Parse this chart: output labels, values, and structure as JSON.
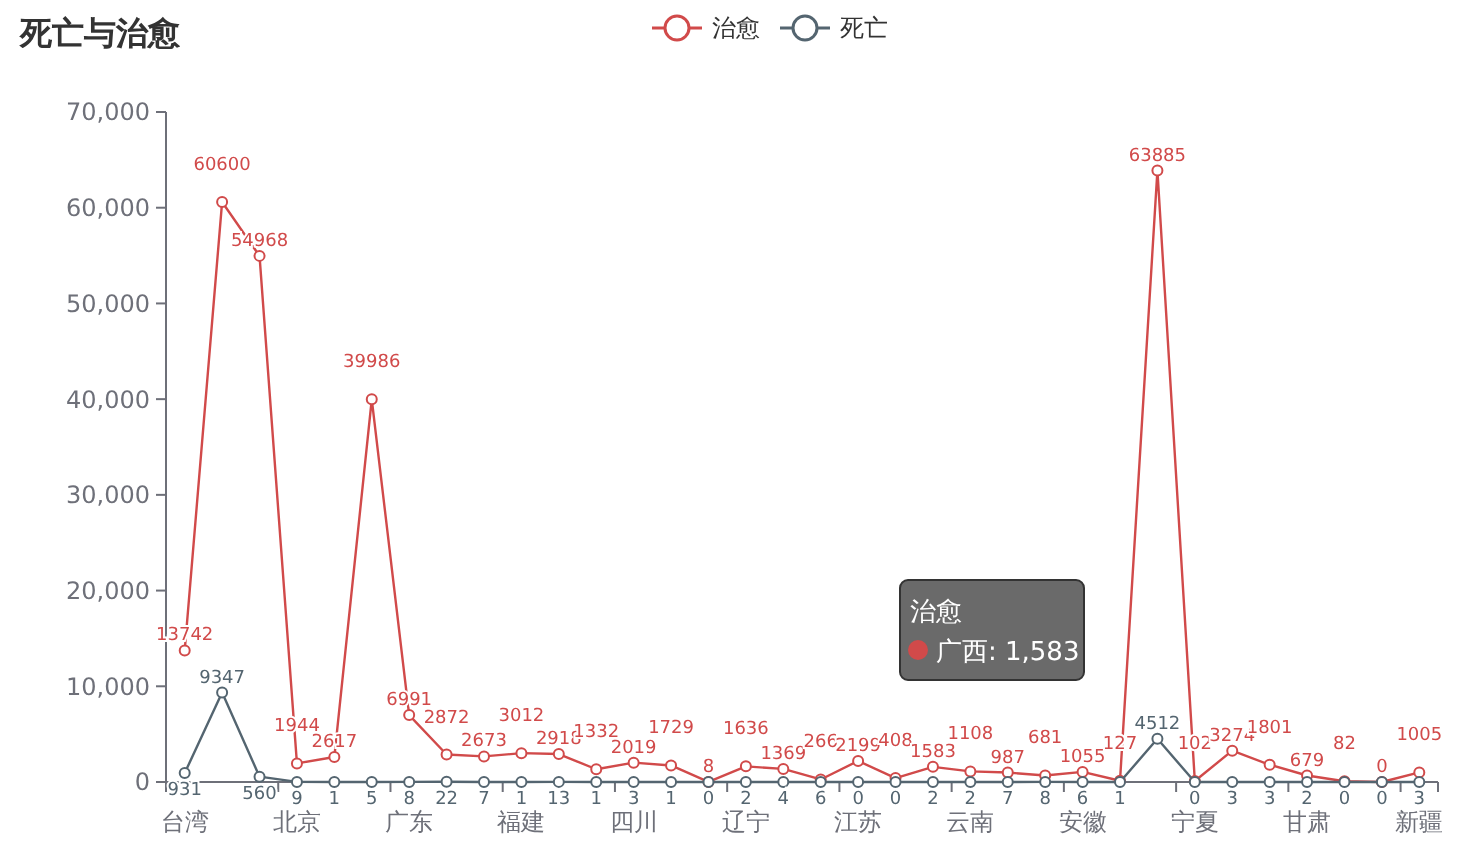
{
  "chart_data": {
    "type": "line",
    "title": "死亡与治愈",
    "categories": [
      "台湾",
      null,
      null,
      "北京",
      null,
      null,
      "广东",
      null,
      null,
      "福建",
      null,
      null,
      "四川",
      null,
      null,
      "辽宁",
      null,
      null,
      "江苏",
      null,
      null,
      "云南",
      null,
      null,
      "安徽",
      null,
      null,
      "宁夏",
      null,
      null,
      "甘肃",
      null,
      null,
      "新疆"
    ],
    "series": [
      {
        "name": "治愈",
        "color": "#d14a4a",
        "values": [
          13742,
          60600,
          54968,
          1944,
          2617,
          39986,
          6991,
          2872,
          2673,
          3012,
          2918,
          1332,
          2019,
          1729,
          8,
          1636,
          1369,
          266,
          2199,
          408,
          1583,
          1108,
          987,
          681,
          1055,
          127,
          63885,
          102,
          3274,
          1801,
          679,
          82,
          0,
          1005
        ]
      },
      {
        "name": "死亡",
        "color": "#546570",
        "values": [
          931,
          9347,
          560,
          9,
          1,
          5,
          8,
          22,
          7,
          1,
          13,
          1,
          3,
          1,
          0,
          2,
          4,
          6,
          0,
          0,
          2,
          2,
          7,
          8,
          6,
          1,
          4512,
          0,
          3,
          3,
          2,
          0,
          0,
          3
        ]
      }
    ],
    "ylim": [
      0,
      70000
    ],
    "yticks": [
      {
        "value": 0,
        "label": "0"
      },
      {
        "value": 10000,
        "label": "10,000"
      },
      {
        "value": 20000,
        "label": "20,000"
      },
      {
        "value": 30000,
        "label": "30,000"
      },
      {
        "value": 40000,
        "label": "40,000"
      },
      {
        "value": 50000,
        "label": "50,000"
      },
      {
        "value": 60000,
        "label": "60,000"
      },
      {
        "value": 70000,
        "label": "70,000"
      }
    ],
    "legend": "top",
    "marker": "circle",
    "data_labels": true,
    "annotations": [
      "治愈",
      "广西: 1,583"
    ]
  }
}
